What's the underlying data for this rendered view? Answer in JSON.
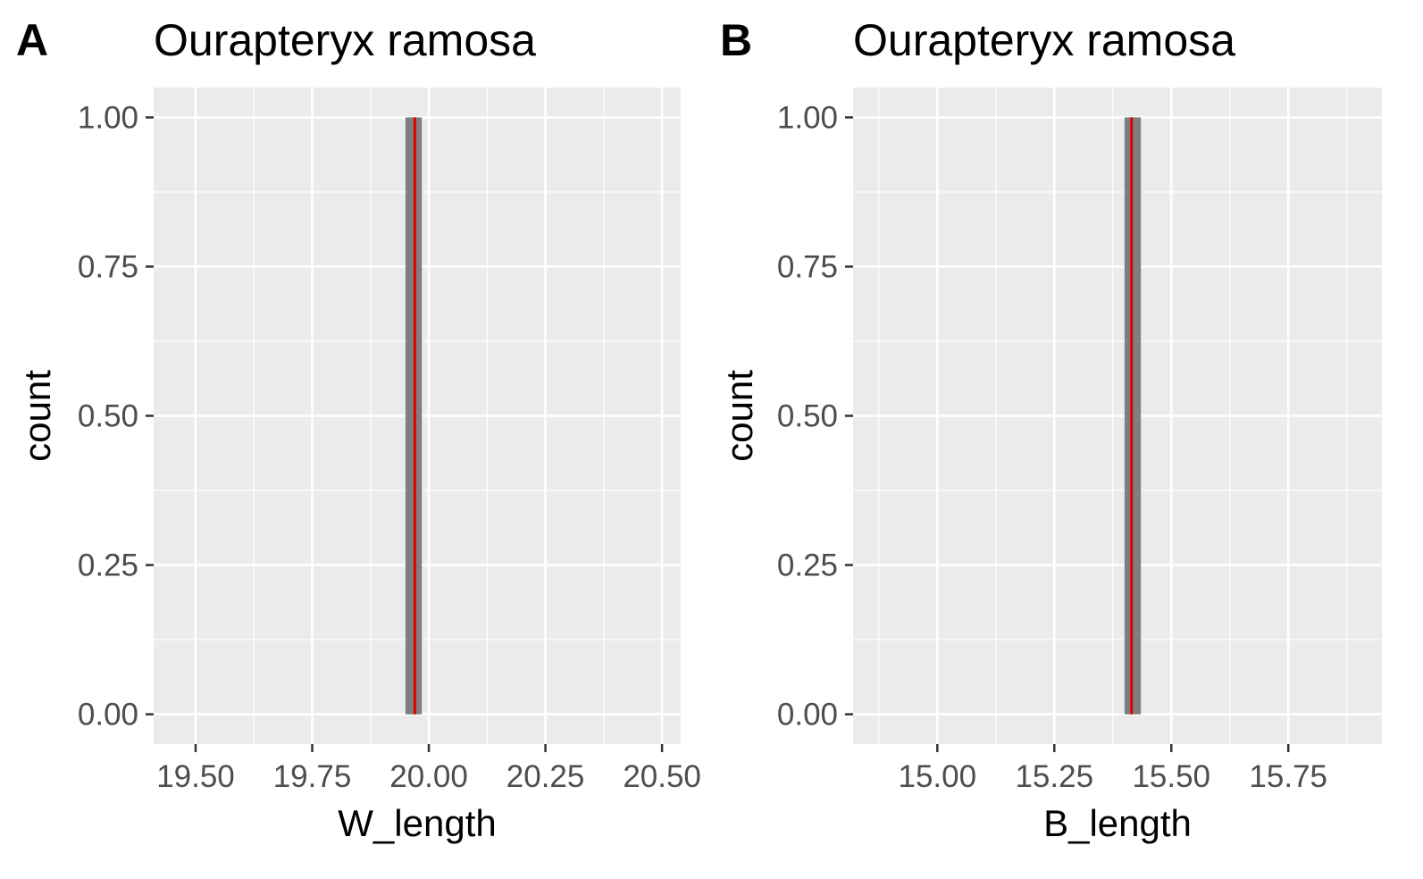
{
  "chart_data": [
    {
      "type": "histogram",
      "panel_label": "A",
      "title": "Ourapteryx ramosa",
      "xlabel": "W_length",
      "ylabel": "count",
      "xlim": [
        19.41,
        20.54
      ],
      "ylim": [
        -0.05,
        1.05
      ],
      "x_ticks": [
        "19.50",
        "19.75",
        "20.00",
        "20.25",
        "20.50"
      ],
      "y_ticks": [
        "0.00",
        "0.25",
        "0.50",
        "0.75",
        "1.00"
      ],
      "bins": [
        {
          "x_start": 19.95,
          "x_end": 19.985,
          "count": 1
        }
      ],
      "vline": {
        "x": 19.97,
        "color": "#e00000"
      },
      "bar_color": "#7f7f7f",
      "grid": true
    },
    {
      "type": "histogram",
      "panel_label": "B",
      "title": "Ourapteryx ramosa",
      "xlabel": "B_length",
      "ylabel": "count",
      "xlim": [
        14.82,
        15.95
      ],
      "ylim": [
        -0.05,
        1.05
      ],
      "x_ticks": [
        "15.00",
        "15.25",
        "15.50",
        "15.75"
      ],
      "y_ticks": [
        "0.00",
        "0.25",
        "0.50",
        "0.75",
        "1.00"
      ],
      "bins": [
        {
          "x_start": 15.4,
          "x_end": 15.435,
          "count": 1
        }
      ],
      "vline": {
        "x": 15.415,
        "color": "#e00000"
      },
      "bar_color": "#7f7f7f",
      "grid": true
    }
  ]
}
